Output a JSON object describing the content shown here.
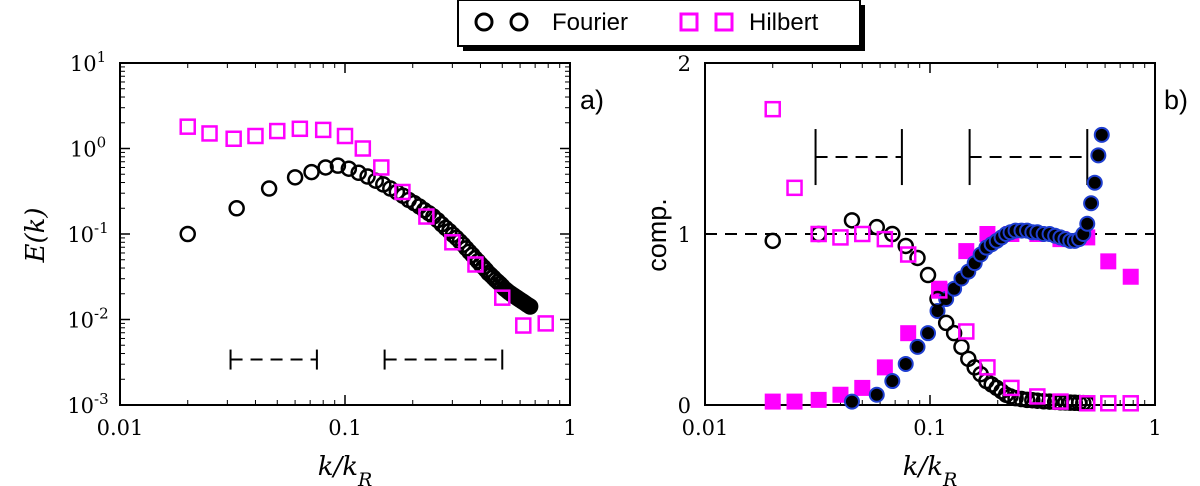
{
  "legend": {
    "entries": [
      {
        "label": "Fourier",
        "marker": "circle-open",
        "color": "#000000"
      },
      {
        "label": "Hilbert",
        "marker": "square-open",
        "color": "#ff00ff"
      }
    ]
  },
  "colors": {
    "fourier": "#000000",
    "hilbert": "#ff00ff",
    "fourier_fill": "#000000",
    "fourier_edge": "#1f3fd0"
  },
  "chart_data": [
    {
      "type": "scatter",
      "panel_label": "a)",
      "xlabel": "k/k_R",
      "ylabel": "E(k)",
      "xscale": "log",
      "yscale": "log",
      "xlim": [
        0.01,
        1
      ],
      "ylim": [
        0.001,
        10
      ],
      "x_tick_labels": [
        "0.01",
        "0.1",
        "1"
      ],
      "y_tick_labels": [
        "10^-3",
        "10^-2",
        "10^-1",
        "10^0",
        "10^1"
      ],
      "series": [
        {
          "name": "Fourier",
          "marker": "circle-open",
          "x": [
            0.02,
            0.033,
            0.046,
            0.06,
            0.071,
            0.082,
            0.093,
            0.104,
            0.115,
            0.126,
            0.137,
            0.148,
            0.159,
            0.17,
            0.181,
            0.192,
            0.203,
            0.214,
            0.225,
            0.236,
            0.247,
            0.258,
            0.269,
            0.28,
            0.291,
            0.302,
            0.313,
            0.324,
            0.335,
            0.346,
            0.357,
            0.368,
            0.379,
            0.39,
            0.401,
            0.412,
            0.423,
            0.434,
            0.445,
            0.456,
            0.467,
            0.478,
            0.489,
            0.5,
            0.511,
            0.522,
            0.533,
            0.544,
            0.555,
            0.566,
            0.577,
            0.588,
            0.599,
            0.61,
            0.621,
            0.632,
            0.643,
            0.654,
            0.665
          ],
          "y": [
            0.1,
            0.2,
            0.34,
            0.46,
            0.53,
            0.6,
            0.63,
            0.58,
            0.52,
            0.47,
            0.42,
            0.38,
            0.34,
            0.31,
            0.28,
            0.25,
            0.23,
            0.21,
            0.19,
            0.175,
            0.16,
            0.145,
            0.13,
            0.118,
            0.108,
            0.098,
            0.09,
            0.082,
            0.075,
            0.068,
            0.062,
            0.057,
            0.052,
            0.048,
            0.044,
            0.041,
            0.038,
            0.035,
            0.033,
            0.031,
            0.029,
            0.0275,
            0.026,
            0.0245,
            0.023,
            0.022,
            0.021,
            0.0202,
            0.0195,
            0.0188,
            0.0182,
            0.0176,
            0.017,
            0.0165,
            0.016,
            0.0155,
            0.015,
            0.0146,
            0.0142
          ]
        },
        {
          "name": "Hilbert",
          "marker": "square-open",
          "x": [
            0.02,
            0.025,
            0.032,
            0.04,
            0.05,
            0.063,
            0.08,
            0.1,
            0.12,
            0.145,
            0.18,
            0.23,
            0.3,
            0.38,
            0.5,
            0.62,
            0.78
          ],
          "y": [
            1.8,
            1.5,
            1.3,
            1.4,
            1.6,
            1.7,
            1.65,
            1.4,
            1.0,
            0.6,
            0.31,
            0.16,
            0.08,
            0.044,
            0.018,
            0.0085,
            0.009
          ]
        }
      ],
      "scale_bars": [
        {
          "x_start": 0.031,
          "x_end": 0.075,
          "y": 0.0034
        },
        {
          "x_start": 0.15,
          "x_end": 0.5,
          "y": 0.0034
        }
      ]
    },
    {
      "type": "scatter",
      "panel_label": "b)",
      "xlabel": "k/k_R",
      "ylabel": "comp.",
      "xscale": "log",
      "yscale": "linear",
      "xlim": [
        0.01,
        1
      ],
      "ylim": [
        0,
        2
      ],
      "x_tick_labels": [
        "0.01",
        "0.1",
        "1"
      ],
      "y_tick_labels": [
        "0",
        "1",
        "2"
      ],
      "reference_line_y": 1,
      "series": [
        {
          "name": "Fourier",
          "marker": "circle-open",
          "x": [
            0.02,
            0.032,
            0.045,
            0.058,
            0.068,
            0.078,
            0.088,
            0.098,
            0.108,
            0.118,
            0.128,
            0.138,
            0.148,
            0.158,
            0.168,
            0.178,
            0.188,
            0.198,
            0.208,
            0.218,
            0.228,
            0.24,
            0.255,
            0.27,
            0.285,
            0.3,
            0.32,
            0.34,
            0.36,
            0.38,
            0.4,
            0.42,
            0.44,
            0.46,
            0.48,
            0.5
          ],
          "y": [
            0.96,
            1.0,
            1.08,
            1.04,
            1.0,
            0.93,
            0.86,
            0.76,
            0.62,
            0.48,
            0.42,
            0.34,
            0.27,
            0.22,
            0.18,
            0.14,
            0.12,
            0.1,
            0.08,
            0.06,
            0.05,
            0.04,
            0.035,
            0.03,
            0.028,
            0.025,
            0.022,
            0.02,
            0.018,
            0.016,
            0.015,
            0.014,
            0.013,
            0.012,
            0.011,
            0.01
          ]
        },
        {
          "name": "Hilbert",
          "marker": "square-open",
          "x": [
            0.02,
            0.025,
            0.032,
            0.04,
            0.05,
            0.063,
            0.08,
            0.11,
            0.145,
            0.18,
            0.23,
            0.3,
            0.38,
            0.5,
            0.62,
            0.78
          ],
          "y": [
            1.73,
            1.27,
            1.0,
            0.98,
            1.0,
            0.97,
            0.88,
            0.67,
            0.43,
            0.22,
            0.1,
            0.05,
            0.02,
            0.01,
            0.01,
            0.01
          ]
        },
        {
          "name": "Fourier (filled)",
          "marker": "circle-filled",
          "x": [
            0.045,
            0.058,
            0.068,
            0.078,
            0.088,
            0.098,
            0.108,
            0.118,
            0.128,
            0.138,
            0.148,
            0.158,
            0.168,
            0.178,
            0.188,
            0.198,
            0.208,
            0.218,
            0.228,
            0.24,
            0.255,
            0.27,
            0.285,
            0.3,
            0.32,
            0.34,
            0.36,
            0.38,
            0.4,
            0.42,
            0.44,
            0.46,
            0.48,
            0.5,
            0.52,
            0.54,
            0.56,
            0.58
          ],
          "y": [
            0.02,
            0.06,
            0.14,
            0.24,
            0.34,
            0.42,
            0.55,
            0.62,
            0.68,
            0.74,
            0.78,
            0.83,
            0.88,
            0.92,
            0.94,
            0.96,
            0.98,
            1.0,
            1.01,
            1.02,
            1.02,
            1.02,
            1.01,
            1.01,
            1.0,
            1.0,
            0.99,
            0.98,
            0.97,
            0.96,
            0.96,
            0.97,
            1.0,
            1.06,
            1.18,
            1.3,
            1.46,
            1.58
          ]
        },
        {
          "name": "Hilbert (filled)",
          "marker": "square-filled",
          "x": [
            0.02,
            0.025,
            0.032,
            0.04,
            0.05,
            0.063,
            0.08,
            0.11,
            0.145,
            0.18,
            0.23,
            0.3,
            0.38,
            0.5,
            0.62,
            0.78
          ],
          "y": [
            0.02,
            0.02,
            0.03,
            0.06,
            0.1,
            0.22,
            0.42,
            0.68,
            0.9,
            1.0,
            1.0,
            1.0,
            0.97,
            0.98,
            0.84,
            0.75
          ]
        }
      ],
      "scale_bars": [
        {
          "x_start": 0.031,
          "x_end": 0.075,
          "y": 1.45
        },
        {
          "x_start": 0.15,
          "x_end": 0.5,
          "y": 1.45
        }
      ]
    }
  ]
}
